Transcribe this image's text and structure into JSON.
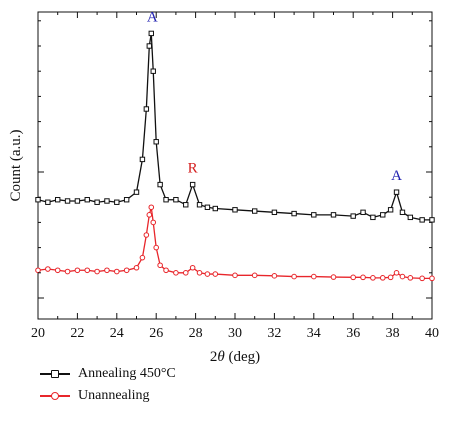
{
  "chart_data": {
    "type": "line",
    "xlabel_prefix": "2",
    "xlabel_theta": "θ",
    "xlabel_suffix": " (deg)",
    "ylabel": "Count (a.u.)",
    "xlim": [
      20,
      40
    ],
    "x_ticks": [
      20,
      22,
      24,
      26,
      28,
      30,
      32,
      34,
      36,
      38,
      40
    ],
    "y_ticks": "unlabeled",
    "grid": false,
    "legend_position": "bottom-left",
    "series": [
      {
        "name": "Annealing 450°C",
        "color": "#111111",
        "marker": "square",
        "x": [
          20,
          20.5,
          21,
          21.5,
          22,
          22.5,
          23,
          23.5,
          24,
          24.5,
          25,
          25.3,
          25.5,
          25.65,
          25.75,
          25.85,
          26,
          26.2,
          26.5,
          27,
          27.5,
          27.85,
          28.2,
          28.6,
          29,
          30,
          31,
          32,
          33,
          34,
          35,
          36,
          36.5,
          37,
          37.5,
          37.9,
          38.2,
          38.5,
          38.9,
          39.5,
          40
        ],
        "y": [
          0.39,
          0.38,
          0.39,
          0.385,
          0.385,
          0.39,
          0.38,
          0.385,
          0.38,
          0.39,
          0.42,
          0.55,
          0.75,
          1.0,
          1.05,
          0.9,
          0.62,
          0.45,
          0.39,
          0.39,
          0.37,
          0.45,
          0.37,
          0.36,
          0.355,
          0.35,
          0.345,
          0.34,
          0.335,
          0.33,
          0.33,
          0.325,
          0.34,
          0.32,
          0.33,
          0.35,
          0.42,
          0.34,
          0.32,
          0.31,
          0.31
        ]
      },
      {
        "name": "Unannealing",
        "color": "#e8262b",
        "marker": "circle",
        "x": [
          20,
          20.5,
          21,
          21.5,
          22,
          22.5,
          23,
          23.5,
          24,
          24.5,
          25,
          25.3,
          25.5,
          25.65,
          25.75,
          25.85,
          26,
          26.2,
          26.5,
          27,
          27.5,
          27.85,
          28.2,
          28.6,
          29,
          30,
          31,
          32,
          33,
          34,
          35,
          36,
          36.5,
          37,
          37.5,
          37.9,
          38.2,
          38.5,
          38.9,
          39.5,
          40
        ],
        "y": [
          0.11,
          0.115,
          0.11,
          0.105,
          0.11,
          0.11,
          0.105,
          0.11,
          0.105,
          0.11,
          0.12,
          0.16,
          0.25,
          0.33,
          0.36,
          0.3,
          0.2,
          0.13,
          0.11,
          0.1,
          0.1,
          0.12,
          0.1,
          0.095,
          0.095,
          0.09,
          0.09,
          0.088,
          0.085,
          0.085,
          0.083,
          0.082,
          0.082,
          0.08,
          0.08,
          0.082,
          0.1,
          0.085,
          0.08,
          0.078,
          0.078
        ]
      }
    ],
    "annotations": [
      {
        "text": "A",
        "x": 25.8,
        "color": "#2020b0",
        "series": 0
      },
      {
        "text": "R",
        "x": 27.85,
        "color": "#d42020",
        "series": 0
      },
      {
        "text": "A",
        "x": 38.2,
        "color": "#2020b0",
        "series": 0
      }
    ]
  },
  "legend": {
    "items": [
      {
        "label": "Annealing 450°C",
        "color": "#111111",
        "marker": "square"
      },
      {
        "label": "Unannealing",
        "color": "#e8262b",
        "marker": "circle"
      }
    ]
  }
}
